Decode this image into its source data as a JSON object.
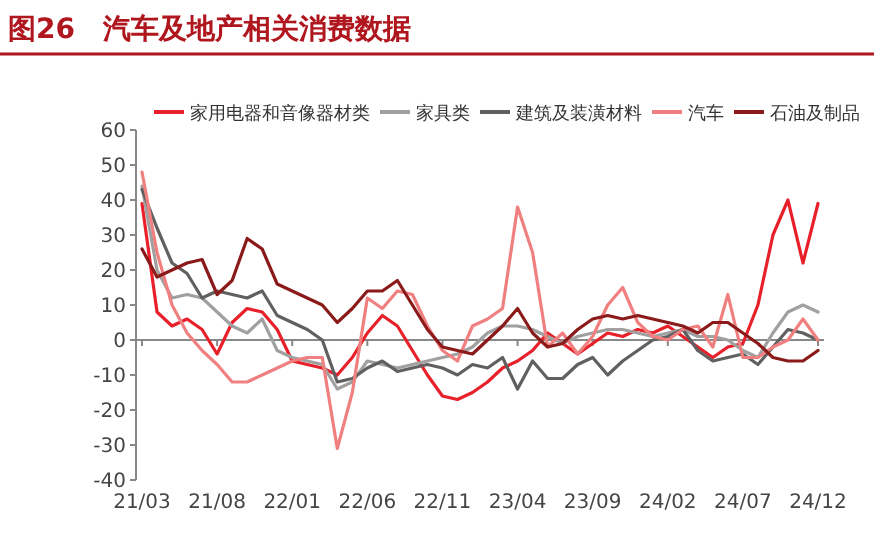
{
  "chart_data": {
    "type": "line",
    "title": "图26　汽车及地产相关消费数据",
    "categories": [
      "21/03",
      null,
      null,
      null,
      null,
      "21/08",
      null,
      null,
      null,
      null,
      "22/01",
      null,
      null,
      null,
      null,
      "22/06",
      null,
      null,
      null,
      null,
      "22/11",
      null,
      null,
      null,
      null,
      "23/04",
      null,
      null,
      null,
      null,
      "23/09",
      null,
      null,
      null,
      null,
      "24/02",
      null,
      null,
      null,
      null,
      "24/07",
      null,
      null,
      null,
      null,
      "24/12"
    ],
    "series": [
      {
        "name": "家用电器和音像器材类",
        "color": "#e8202a",
        "values": [
          39,
          8,
          4,
          6,
          3,
          -4,
          5,
          9,
          8,
          3,
          -6,
          -7,
          -8,
          -10,
          -5,
          2,
          7,
          4,
          -3,
          -10,
          -16,
          -17,
          -15,
          -12,
          -8,
          -6,
          -3,
          2,
          -1,
          -4,
          -1,
          2,
          1,
          3,
          2,
          4,
          1,
          -2,
          -5,
          -2,
          -1,
          10,
          30,
          40,
          22,
          39
        ]
      },
      {
        "name": "家具类",
        "color": "#a0a0a0",
        "values": [
          44,
          20,
          12,
          13,
          12,
          8,
          4,
          2,
          6,
          -3,
          -5,
          -6,
          -7,
          -14,
          -12,
          -6,
          -7,
          -8,
          -7,
          -6,
          -5,
          -4,
          -2,
          2,
          4,
          4,
          3,
          1,
          -1,
          1,
          2,
          3,
          3,
          2,
          1,
          2,
          3,
          1,
          1,
          0,
          -3,
          -5,
          2,
          8,
          10,
          8
        ]
      },
      {
        "name": "建筑及装潢材料",
        "color": "#606060",
        "values": [
          43,
          32,
          22,
          19,
          12,
          14,
          13,
          12,
          14,
          7,
          5,
          3,
          0,
          -12,
          -11,
          -8,
          -6,
          -9,
          -8,
          -7,
          -8,
          -10,
          -7,
          -8,
          -5,
          -14,
          -6,
          -11,
          -11,
          -7,
          -5,
          -10,
          -6,
          -3,
          0,
          1,
          3,
          -3,
          -6,
          -5,
          -4,
          -7,
          -2,
          3,
          2,
          0
        ]
      },
      {
        "name": "汽车",
        "color": "#f08080",
        "values": [
          48,
          25,
          10,
          2,
          -3,
          -7,
          -12,
          -12,
          -10,
          -8,
          -6,
          -5,
          -5,
          -31,
          -15,
          12,
          9,
          14,
          13,
          4,
          -3,
          -6,
          4,
          6,
          9,
          38,
          25,
          -2,
          2,
          -4,
          1,
          10,
          15,
          5,
          1,
          0,
          3,
          4,
          -2,
          13,
          -5,
          -5,
          -2,
          0,
          6,
          0
        ]
      },
      {
        "name": "石油及制品",
        "color": "#8b1a1a",
        "values": [
          26,
          18,
          20,
          22,
          23,
          13,
          17,
          29,
          26,
          16,
          14,
          12,
          10,
          5,
          9,
          14,
          14,
          17,
          10,
          3,
          -2,
          -3,
          -4,
          0,
          4,
          9,
          2,
          -2,
          -1,
          3,
          6,
          7,
          6,
          7,
          6,
          5,
          4,
          2,
          5,
          5,
          2,
          -1,
          -5,
          -6,
          -6,
          -3
        ]
      }
    ],
    "ylim": [
      -40,
      60
    ],
    "yticks": [
      -40,
      -30,
      -20,
      -10,
      0,
      10,
      20,
      30,
      40,
      50,
      60
    ],
    "legend": "top",
    "marker": "none",
    "line_style": "solid"
  }
}
